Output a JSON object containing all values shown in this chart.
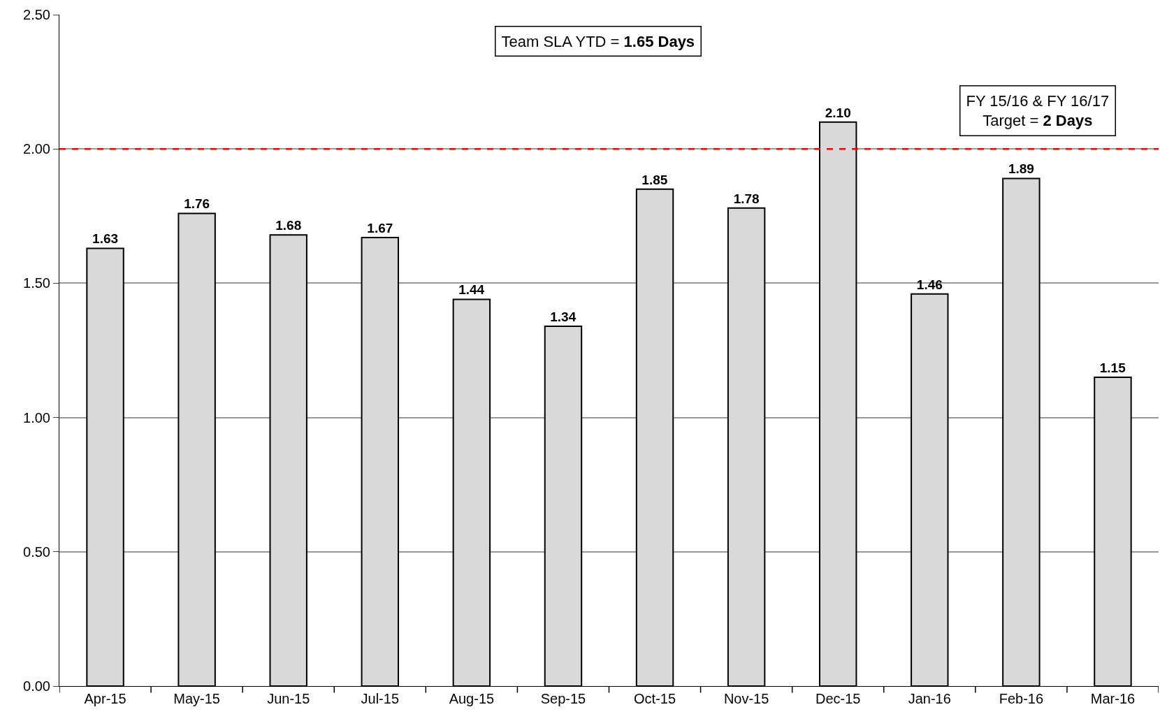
{
  "chart_data": {
    "type": "bar",
    "categories": [
      "Apr-15",
      "May-15",
      "Jun-15",
      "Jul-15",
      "Aug-15",
      "Sep-15",
      "Oct-15",
      "Nov-15",
      "Dec-15",
      "Jan-16",
      "Feb-16",
      "Mar-16"
    ],
    "values": [
      1.63,
      1.76,
      1.68,
      1.67,
      1.44,
      1.34,
      1.85,
      1.78,
      2.1,
      1.46,
      1.89,
      1.15
    ],
    "value_labels": [
      "1.63",
      "1.76",
      "1.68",
      "1.67",
      "1.44",
      "1.34",
      "1.85",
      "1.78",
      "2.10",
      "1.46",
      "1.89",
      "1.15"
    ],
    "color": "#d9d9d9",
    "ylim": [
      0,
      2.5
    ],
    "yticks": [
      {
        "value": 0,
        "label": "0.00"
      },
      {
        "value": 0.5,
        "label": "0.50"
      },
      {
        "value": 1,
        "label": "1.00"
      },
      {
        "value": 1.5,
        "label": "1.50"
      },
      {
        "value": 2,
        "label": "2.00"
      },
      {
        "value": 2.5,
        "label": "2.50"
      }
    ],
    "grid": "y",
    "ref_lines": [
      {
        "axis": "y",
        "value": 2,
        "color": "#ff0000",
        "line_style": "dashed"
      }
    ],
    "annotations": [
      "Team SLA YTD = 1.65 Days",
      "FY 15/16 & FY 16/17\nTarget = 2 Days"
    ]
  }
}
